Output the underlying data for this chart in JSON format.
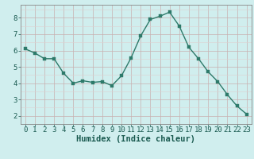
{
  "x": [
    0,
    1,
    2,
    3,
    4,
    5,
    6,
    7,
    8,
    9,
    10,
    11,
    12,
    13,
    14,
    15,
    16,
    17,
    18,
    19,
    20,
    21,
    22,
    23
  ],
  "y": [
    6.1,
    5.85,
    5.5,
    5.5,
    4.6,
    4.0,
    4.15,
    4.05,
    4.1,
    3.85,
    4.45,
    5.55,
    6.9,
    7.9,
    8.1,
    8.35,
    7.5,
    6.2,
    5.5,
    4.7,
    4.1,
    3.3,
    2.6,
    2.1
  ],
  "line_color": "#2d7a6a",
  "marker_color": "#2d7a6a",
  "bg_color": "#d0eeee",
  "grid_major_color": "#c8b0b0",
  "grid_minor_color": "#ddd0d0",
  "xlabel": "Humidex (Indice chaleur)",
  "xlim": [
    -0.5,
    23.5
  ],
  "ylim": [
    1.5,
    8.8
  ],
  "yticks": [
    2,
    3,
    4,
    5,
    6,
    7,
    8
  ],
  "xticks": [
    0,
    1,
    2,
    3,
    4,
    5,
    6,
    7,
    8,
    9,
    10,
    11,
    12,
    13,
    14,
    15,
    16,
    17,
    18,
    19,
    20,
    21,
    22,
    23
  ],
  "xlabel_fontsize": 7.5,
  "tick_fontsize": 6.5,
  "marker_size": 2.5,
  "line_width": 1.0
}
